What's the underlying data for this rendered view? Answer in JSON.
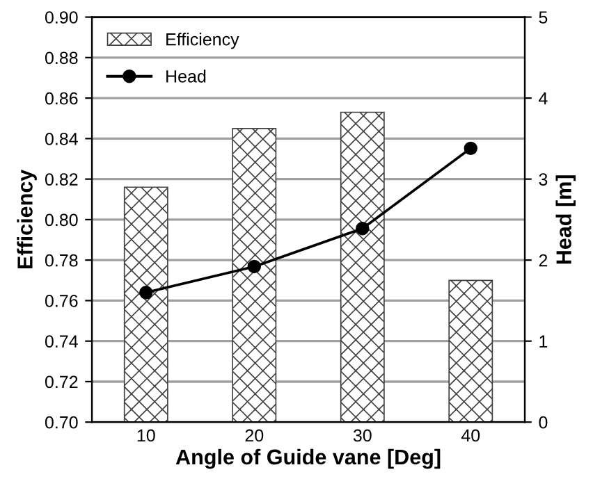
{
  "chart_data": {
    "type": "bar",
    "xlabel": "Angle of Guide vane [Deg]",
    "ylabel": "Efficiency",
    "y2label": "Head [m]",
    "categories": [
      "10",
      "20",
      "30",
      "40"
    ],
    "series": [
      {
        "name": "Efficiency",
        "color": "#404040",
        "values": [
          0.816,
          0.845,
          0.853,
          0.77
        ]
      },
      {
        "name": "Head",
        "type": "line",
        "axis": "y2",
        "color": "#000000",
        "marker": "circle",
        "values": [
          1.6,
          1.92,
          2.39,
          3.38
        ]
      }
    ],
    "ylim": [
      0.7,
      0.9
    ],
    "yticks": [
      {
        "value": 0.7,
        "label": "0.70"
      },
      {
        "value": 0.72,
        "label": "0.72"
      },
      {
        "value": 0.74,
        "label": "0.74"
      },
      {
        "value": 0.76,
        "label": "0.76"
      },
      {
        "value": 0.78,
        "label": "0.78"
      },
      {
        "value": 0.8,
        "label": "0.80"
      },
      {
        "value": 0.82,
        "label": "0.82"
      },
      {
        "value": 0.84,
        "label": "0.84"
      },
      {
        "value": 0.86,
        "label": "0.86"
      },
      {
        "value": 0.88,
        "label": "0.88"
      },
      {
        "value": 0.9,
        "label": "0.90"
      }
    ],
    "y2lim": [
      0,
      5
    ],
    "y2ticks": [
      0,
      1,
      2,
      3,
      4,
      5
    ],
    "grid": "y",
    "legend": "top left"
  }
}
